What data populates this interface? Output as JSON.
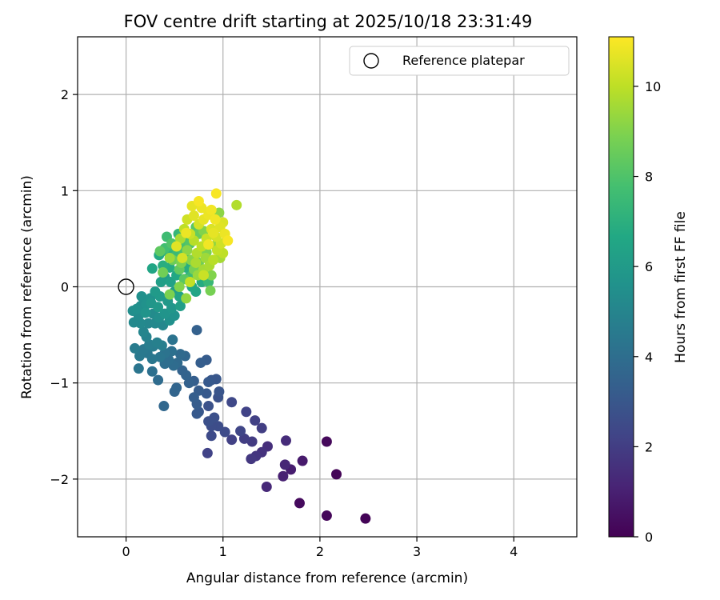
{
  "chart_data": {
    "type": "scatter",
    "title": "FOV centre drift starting at 2025/10/18 23:31:49",
    "xlabel": "Angular distance from reference (arcmin)",
    "ylabel": "Rotation from reference (arcmin)",
    "xlim": [
      -0.5,
      4.65
    ],
    "ylim": [
      -2.6,
      2.6
    ],
    "xticks": [
      0,
      1,
      2,
      3,
      4
    ],
    "xtick_labels": [
      "0",
      "1",
      "2",
      "3",
      "4"
    ],
    "yticks": [
      -2,
      -1,
      0,
      1,
      2
    ],
    "ytick_labels": [
      "−2",
      "−1",
      "0",
      "1",
      "2"
    ],
    "grid": true,
    "legend": {
      "location": "top-right",
      "entries": [
        "Reference platepar"
      ]
    },
    "reference_point": {
      "x": 0,
      "y": 0,
      "label": "Reference platepar"
    },
    "colorbar": {
      "label": "Hours from first FF file",
      "range": [
        0,
        11.1
      ],
      "ticks": [
        0,
        2,
        4,
        6,
        8,
        10
      ],
      "tick_labels": [
        "0",
        "2",
        "4",
        "6",
        "8",
        "10"
      ],
      "colormap": "viridis"
    },
    "points": [
      {
        "x": 2.47,
        "y": -2.41,
        "c": 0.1
      },
      {
        "x": 2.07,
        "y": -2.38,
        "c": 0.2
      },
      {
        "x": 1.79,
        "y": -2.25,
        "c": 0.3
      },
      {
        "x": 2.17,
        "y": -1.95,
        "c": 0.15
      },
      {
        "x": 2.07,
        "y": -1.61,
        "c": 0.25
      },
      {
        "x": 1.82,
        "y": -1.81,
        "c": 0.8
      },
      {
        "x": 1.7,
        "y": -1.9,
        "c": 0.9
      },
      {
        "x": 1.62,
        "y": -1.97,
        "c": 1.0
      },
      {
        "x": 1.64,
        "y": -1.85,
        "c": 1.2
      },
      {
        "x": 1.45,
        "y": -2.08,
        "c": 1.3
      },
      {
        "x": 1.65,
        "y": -1.6,
        "c": 1.4
      },
      {
        "x": 1.46,
        "y": -1.66,
        "c": 1.5
      },
      {
        "x": 1.4,
        "y": -1.72,
        "c": 1.6
      },
      {
        "x": 1.34,
        "y": -1.76,
        "c": 1.7
      },
      {
        "x": 1.29,
        "y": -1.79,
        "c": 1.8
      },
      {
        "x": 1.3,
        "y": -1.61,
        "c": 1.9
      },
      {
        "x": 1.4,
        "y": -1.47,
        "c": 2.0
      },
      {
        "x": 1.33,
        "y": -1.39,
        "c": 2.1
      },
      {
        "x": 1.24,
        "y": -1.3,
        "c": 2.2
      },
      {
        "x": 1.22,
        "y": -1.58,
        "c": 2.0
      },
      {
        "x": 1.18,
        "y": -1.5,
        "c": 2.3
      },
      {
        "x": 1.09,
        "y": -1.2,
        "c": 2.4
      },
      {
        "x": 1.09,
        "y": -1.59,
        "c": 2.1
      },
      {
        "x": 1.02,
        "y": -1.51,
        "c": 2.5
      },
      {
        "x": 0.95,
        "y": -1.45,
        "c": 2.6
      },
      {
        "x": 0.88,
        "y": -1.55,
        "c": 2.5
      },
      {
        "x": 0.84,
        "y": -1.73,
        "c": 2.2
      },
      {
        "x": 0.88,
        "y": -1.45,
        "c": 2.6
      },
      {
        "x": 0.85,
        "y": -1.4,
        "c": 2.7
      },
      {
        "x": 0.85,
        "y": -1.24,
        "c": 2.8
      },
      {
        "x": 0.96,
        "y": -1.09,
        "c": 2.9
      },
      {
        "x": 0.95,
        "y": -1.15,
        "c": 2.8
      },
      {
        "x": 0.91,
        "y": -1.36,
        "c": 2.7
      },
      {
        "x": 0.93,
        "y": -0.96,
        "c": 3.0
      },
      {
        "x": 0.88,
        "y": -0.97,
        "c": 3.0
      },
      {
        "x": 0.85,
        "y": -0.99,
        "c": 3.1
      },
      {
        "x": 0.83,
        "y": -1.11,
        "c": 3.1
      },
      {
        "x": 0.75,
        "y": -1.08,
        "c": 3.2
      },
      {
        "x": 0.73,
        "y": -1.22,
        "c": 3.2
      },
      {
        "x": 0.73,
        "y": -1.32,
        "c": 3.1
      },
      {
        "x": 0.75,
        "y": -1.3,
        "c": 3.0
      },
      {
        "x": 0.7,
        "y": -1.15,
        "c": 3.3
      },
      {
        "x": 0.7,
        "y": -0.98,
        "c": 3.3
      },
      {
        "x": 0.83,
        "y": -0.76,
        "c": 3.2
      },
      {
        "x": 0.77,
        "y": -0.79,
        "c": 3.3
      },
      {
        "x": 0.73,
        "y": -0.45,
        "c": 3.4
      },
      {
        "x": 0.65,
        "y": -1.0,
        "c": 3.4
      },
      {
        "x": 0.62,
        "y": -0.92,
        "c": 3.5
      },
      {
        "x": 0.58,
        "y": -0.87,
        "c": 3.5
      },
      {
        "x": 0.52,
        "y": -1.05,
        "c": 3.6
      },
      {
        "x": 0.5,
        "y": -1.09,
        "c": 3.6
      },
      {
        "x": 0.39,
        "y": -1.24,
        "c": 3.7
      },
      {
        "x": 0.61,
        "y": -0.72,
        "c": 3.7
      },
      {
        "x": 0.56,
        "y": -0.7,
        "c": 3.8
      },
      {
        "x": 0.53,
        "y": -0.79,
        "c": 3.8
      },
      {
        "x": 0.49,
        "y": -0.82,
        "c": 3.9
      },
      {
        "x": 0.44,
        "y": -0.76,
        "c": 4.0
      },
      {
        "x": 0.47,
        "y": -0.67,
        "c": 4.1
      },
      {
        "x": 0.48,
        "y": -0.55,
        "c": 4.2
      },
      {
        "x": 0.4,
        "y": -0.69,
        "c": 4.2
      },
      {
        "x": 0.4,
        "y": -0.8,
        "c": 4.0
      },
      {
        "x": 0.35,
        "y": -0.73,
        "c": 4.3
      },
      {
        "x": 0.33,
        "y": -0.97,
        "c": 3.9
      },
      {
        "x": 0.27,
        "y": -0.88,
        "c": 4.1
      },
      {
        "x": 0.27,
        "y": -0.75,
        "c": 4.4
      },
      {
        "x": 0.22,
        "y": -0.69,
        "c": 4.4
      },
      {
        "x": 0.18,
        "y": -0.65,
        "c": 4.5
      },
      {
        "x": 0.14,
        "y": -0.72,
        "c": 4.5
      },
      {
        "x": 0.13,
        "y": -0.85,
        "c": 4.3
      },
      {
        "x": 0.09,
        "y": -0.64,
        "c": 4.6
      },
      {
        "x": 0.24,
        "y": -0.6,
        "c": 4.7
      },
      {
        "x": 0.28,
        "y": -0.62,
        "c": 4.6
      },
      {
        "x": 0.32,
        "y": -0.58,
        "c": 4.8
      },
      {
        "x": 0.37,
        "y": -0.61,
        "c": 4.7
      },
      {
        "x": 0.21,
        "y": -0.52,
        "c": 4.9
      },
      {
        "x": 0.18,
        "y": -0.47,
        "c": 5.0
      },
      {
        "x": 0.23,
        "y": -0.38,
        "c": 5.1
      },
      {
        "x": 0.15,
        "y": -0.38,
        "c": 5.2
      },
      {
        "x": 0.08,
        "y": -0.37,
        "c": 5.2
      },
      {
        "x": 0.13,
        "y": -0.3,
        "c": 5.3
      },
      {
        "x": 0.07,
        "y": -0.25,
        "c": 5.4
      },
      {
        "x": 0.11,
        "y": -0.23,
        "c": 5.5
      },
      {
        "x": 0.15,
        "y": -0.2,
        "c": 5.4
      },
      {
        "x": 0.16,
        "y": -0.1,
        "c": 5.5
      },
      {
        "x": 0.21,
        "y": -0.18,
        "c": 5.6
      },
      {
        "x": 0.25,
        "y": -0.12,
        "c": 5.6
      },
      {
        "x": 0.28,
        "y": -0.28,
        "c": 5.3
      },
      {
        "x": 0.3,
        "y": -0.38,
        "c": 5.2
      },
      {
        "x": 0.34,
        "y": -0.32,
        "c": 5.4
      },
      {
        "x": 0.38,
        "y": -0.4,
        "c": 5.1
      },
      {
        "x": 0.4,
        "y": -0.28,
        "c": 5.7
      },
      {
        "x": 0.45,
        "y": -0.35,
        "c": 5.5
      },
      {
        "x": 0.47,
        "y": -0.22,
        "c": 5.8
      },
      {
        "x": 0.5,
        "y": -0.3,
        "c": 5.6
      },
      {
        "x": 0.43,
        "y": -0.15,
        "c": 5.9
      },
      {
        "x": 0.35,
        "y": -0.1,
        "c": 6.0
      },
      {
        "x": 0.3,
        "y": -0.05,
        "c": 6.0
      },
      {
        "x": 0.26,
        "y": -0.17,
        "c": 5.8
      },
      {
        "x": 0.33,
        "y": -0.21,
        "c": 5.9
      },
      {
        "x": 0.2,
        "y": -0.27,
        "c": 5.7
      },
      {
        "x": 0.36,
        "y": 0.05,
        "c": 6.2
      },
      {
        "x": 0.4,
        "y": 0.1,
        "c": 6.1
      },
      {
        "x": 0.46,
        "y": 0.05,
        "c": 6.3
      },
      {
        "x": 0.5,
        "y": -0.05,
        "c": 6.1
      },
      {
        "x": 0.55,
        "y": -0.1,
        "c": 6.4
      },
      {
        "x": 0.56,
        "y": -0.2,
        "c": 6.2
      },
      {
        "x": 0.52,
        "y": 0.12,
        "c": 6.6
      },
      {
        "x": 0.45,
        "y": 0.2,
        "c": 6.8
      },
      {
        "x": 0.38,
        "y": 0.22,
        "c": 6.9
      },
      {
        "x": 0.27,
        "y": 0.19,
        "c": 6.5
      },
      {
        "x": 0.34,
        "y": 0.33,
        "c": 6.7
      },
      {
        "x": 0.44,
        "y": 0.35,
        "c": 7.1
      },
      {
        "x": 0.49,
        "y": 0.42,
        "c": 7.4
      },
      {
        "x": 0.42,
        "y": 0.52,
        "c": 7.6
      },
      {
        "x": 0.54,
        "y": 0.55,
        "c": 7.3
      },
      {
        "x": 0.58,
        "y": 0.47,
        "c": 7.0
      },
      {
        "x": 0.6,
        "y": 0.33,
        "c": 7.2
      },
      {
        "x": 0.62,
        "y": 0.2,
        "c": 6.9
      },
      {
        "x": 0.65,
        "y": 0.1,
        "c": 6.7
      },
      {
        "x": 0.68,
        "y": 0.0,
        "c": 6.6
      },
      {
        "x": 0.72,
        "y": -0.05,
        "c": 6.5
      },
      {
        "x": 0.78,
        "y": 0.05,
        "c": 6.8
      },
      {
        "x": 0.85,
        "y": 0.05,
        "c": 7.4
      },
      {
        "x": 0.87,
        "y": -0.04,
        "c": 8.8
      },
      {
        "x": 0.62,
        "y": -0.12,
        "c": 9.3
      },
      {
        "x": 0.55,
        "y": 0.0,
        "c": 9.0
      },
      {
        "x": 0.45,
        "y": -0.08,
        "c": 8.9
      },
      {
        "x": 0.38,
        "y": 0.15,
        "c": 8.7
      },
      {
        "x": 0.35,
        "y": 0.37,
        "c": 8.3
      },
      {
        "x": 0.48,
        "y": 0.28,
        "c": 8.6
      },
      {
        "x": 0.57,
        "y": 0.25,
        "c": 8.9
      },
      {
        "x": 0.63,
        "y": 0.38,
        "c": 9.2
      },
      {
        "x": 0.67,
        "y": 0.28,
        "c": 9.1
      },
      {
        "x": 0.7,
        "y": 0.18,
        "c": 8.8
      },
      {
        "x": 0.74,
        "y": 0.12,
        "c": 9.4
      },
      {
        "x": 0.8,
        "y": 0.18,
        "c": 9.6
      },
      {
        "x": 0.82,
        "y": 0.3,
        "c": 9.5
      },
      {
        "x": 0.86,
        "y": 0.22,
        "c": 9.7
      },
      {
        "x": 0.9,
        "y": 0.28,
        "c": 9.9
      },
      {
        "x": 0.94,
        "y": 0.38,
        "c": 10.1
      },
      {
        "x": 0.98,
        "y": 0.45,
        "c": 10.3
      },
      {
        "x": 1.0,
        "y": 0.35,
        "c": 10.0
      },
      {
        "x": 0.93,
        "y": 0.52,
        "c": 10.4
      },
      {
        "x": 0.88,
        "y": 0.6,
        "c": 10.5
      },
      {
        "x": 0.83,
        "y": 0.5,
        "c": 10.2
      },
      {
        "x": 0.78,
        "y": 0.42,
        "c": 10.0
      },
      {
        "x": 0.73,
        "y": 0.35,
        "c": 9.8
      },
      {
        "x": 0.7,
        "y": 0.48,
        "c": 9.9
      },
      {
        "x": 0.66,
        "y": 0.55,
        "c": 10.2
      },
      {
        "x": 0.6,
        "y": 0.6,
        "c": 10.0
      },
      {
        "x": 0.56,
        "y": 0.5,
        "c": 9.7
      },
      {
        "x": 0.63,
        "y": 0.7,
        "c": 10.3
      },
      {
        "x": 0.7,
        "y": 0.74,
        "c": 10.6
      },
      {
        "x": 0.75,
        "y": 0.65,
        "c": 10.4
      },
      {
        "x": 0.8,
        "y": 0.7,
        "c": 10.7
      },
      {
        "x": 0.85,
        "y": 0.75,
        "c": 10.8
      },
      {
        "x": 0.92,
        "y": 0.7,
        "c": 10.9
      },
      {
        "x": 0.97,
        "y": 0.62,
        "c": 10.6
      },
      {
        "x": 1.02,
        "y": 0.55,
        "c": 10.8
      },
      {
        "x": 1.05,
        "y": 0.48,
        "c": 11.0
      },
      {
        "x": 0.96,
        "y": 0.77,
        "c": 9.2
      },
      {
        "x": 1.0,
        "y": 0.67,
        "c": 10.5
      },
      {
        "x": 0.88,
        "y": 0.8,
        "c": 10.9
      },
      {
        "x": 0.78,
        "y": 0.82,
        "c": 10.8
      },
      {
        "x": 0.75,
        "y": 0.89,
        "c": 11.0
      },
      {
        "x": 0.68,
        "y": 0.84,
        "c": 10.7
      },
      {
        "x": 0.93,
        "y": 0.97,
        "c": 11.0
      },
      {
        "x": 1.14,
        "y": 0.85,
        "c": 9.8
      },
      {
        "x": 0.9,
        "y": 0.56,
        "c": 10.7
      },
      {
        "x": 0.85,
        "y": 0.44,
        "c": 10.9
      },
      {
        "x": 0.8,
        "y": 0.58,
        "c": 9.0
      },
      {
        "x": 0.75,
        "y": 0.55,
        "c": 8.5
      },
      {
        "x": 0.72,
        "y": 0.62,
        "c": 8.2
      },
      {
        "x": 0.66,
        "y": 0.45,
        "c": 8.1
      },
      {
        "x": 0.62,
        "y": 0.48,
        "c": 7.9
      },
      {
        "x": 0.57,
        "y": 0.4,
        "c": 7.8
      },
      {
        "x": 0.52,
        "y": 0.33,
        "c": 7.5
      },
      {
        "x": 0.47,
        "y": 0.45,
        "c": 8.0
      },
      {
        "x": 0.4,
        "y": 0.4,
        "c": 7.7
      },
      {
        "x": 0.55,
        "y": 0.18,
        "c": 8.4
      },
      {
        "x": 0.6,
        "y": 0.08,
        "c": 8.2
      },
      {
        "x": 0.75,
        "y": 0.25,
        "c": 8.6
      },
      {
        "x": 0.83,
        "y": 0.36,
        "c": 8.9
      },
      {
        "x": 0.92,
        "y": 0.43,
        "c": 9.3
      },
      {
        "x": 0.97,
        "y": 0.3,
        "c": 9.6
      },
      {
        "x": 0.88,
        "y": 0.12,
        "c": 9.0
      },
      {
        "x": 0.68,
        "y": 0.12,
        "c": 7.6
      },
      {
        "x": 0.72,
        "y": 0.25,
        "c": 9.7
      },
      {
        "x": 0.66,
        "y": 0.05,
        "c": 10.1
      },
      {
        "x": 0.58,
        "y": 0.3,
        "c": 10.4
      },
      {
        "x": 0.52,
        "y": 0.42,
        "c": 10.6
      },
      {
        "x": 0.45,
        "y": 0.3,
        "c": 9.5
      },
      {
        "x": 0.62,
        "y": 0.56,
        "c": 10.8
      },
      {
        "x": 0.8,
        "y": 0.12,
        "c": 10.2
      }
    ]
  }
}
